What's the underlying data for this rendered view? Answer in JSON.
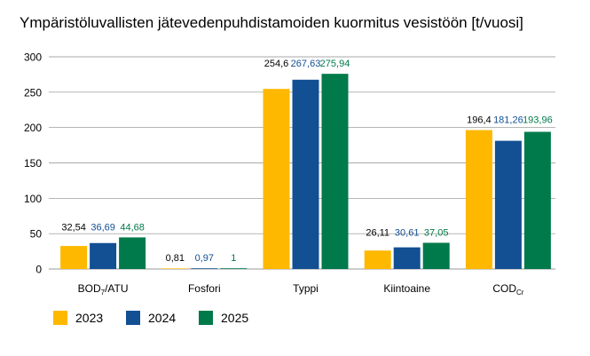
{
  "chart_data": {
    "type": "bar",
    "title": "Ympäristöluvallisten jätevedenpuhdistamoiden kuormitus vesistöön [t/vuosi]",
    "categories": [
      {
        "label": "BOD",
        "sub": "7",
        "suffix": "/ATU"
      },
      {
        "label": "Fosfori",
        "sub": "",
        "suffix": ""
      },
      {
        "label": "Typpi",
        "sub": "",
        "suffix": ""
      },
      {
        "label": "Kiintoaine",
        "sub": "",
        "suffix": ""
      },
      {
        "label": "COD",
        "sub": "Cr",
        "suffix": ""
      }
    ],
    "series": [
      {
        "name": "2023",
        "color": "#FFB800",
        "label_color": "#000000",
        "values": [
          32.54,
          0.81,
          254.6,
          26.11,
          196.4
        ],
        "labels": [
          "32,54",
          "0,81",
          "254,6",
          "26,11",
          "196,4"
        ]
      },
      {
        "name": "2024",
        "color": "#134F93",
        "label_color": "#134F93",
        "values": [
          36.69,
          0.97,
          267.63,
          30.61,
          181.26
        ],
        "labels": [
          "36,69",
          "0,97",
          "267,63",
          "30,61",
          "181,26"
        ]
      },
      {
        "name": "2025",
        "color": "#007A4A",
        "label_color": "#007A4A",
        "values": [
          44.68,
          1,
          275.94,
          37.05,
          193.96
        ],
        "labels": [
          "44,68",
          "1",
          "275,94",
          "37,05",
          "193,96"
        ]
      }
    ],
    "yticks": [
      0,
      50,
      100,
      150,
      200,
      250,
      300
    ],
    "ylim": [
      0,
      300
    ],
    "grid": true,
    "legend_position": "bottom-left"
  }
}
